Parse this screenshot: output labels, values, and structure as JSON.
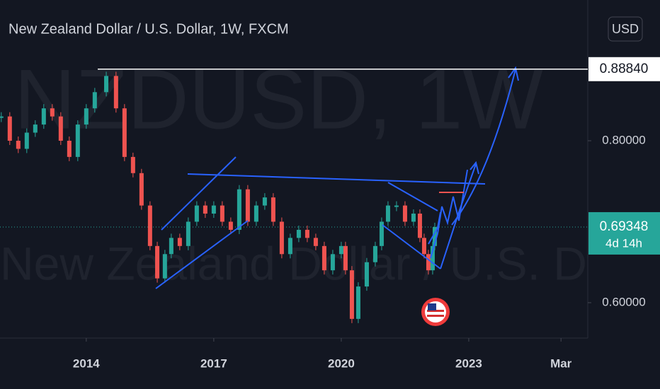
{
  "header": {
    "title": "New Zealand Dollar / U.S. Dollar, 1W, FXCM",
    "currency": "USD",
    "watermark_symbol": "NZDUSD, 1W",
    "watermark_name": "New Zealand Dollar / U.S. Dollar"
  },
  "chart_data": {
    "type": "line",
    "x": [
      2012.0,
      2012.2,
      2012.4,
      2012.6,
      2012.8,
      2013.0,
      2013.2,
      2013.4,
      2013.6,
      2013.8,
      2014.0,
      2014.2,
      2014.47,
      2014.7,
      2014.9,
      2015.1,
      2015.3,
      2015.5,
      2015.67,
      2015.85,
      2016.0,
      2016.2,
      2016.4,
      2016.6,
      2016.8,
      2017.0,
      2017.2,
      2017.4,
      2017.6,
      2017.8,
      2018.0,
      2018.2,
      2018.4,
      2018.6,
      2018.8,
      2019.0,
      2019.2,
      2019.4,
      2019.6,
      2019.8,
      2020.0,
      2020.1,
      2020.25,
      2020.4,
      2020.6,
      2020.8,
      2020.95,
      2021.1,
      2021.3,
      2021.5,
      2021.7,
      2021.85,
      2021.95,
      2022.05,
      2022.15,
      2022.2
    ],
    "values": [
      0.83,
      0.8,
      0.79,
      0.81,
      0.82,
      0.84,
      0.83,
      0.8,
      0.78,
      0.82,
      0.84,
      0.86,
      0.88,
      0.84,
      0.78,
      0.76,
      0.72,
      0.67,
      0.63,
      0.66,
      0.68,
      0.67,
      0.7,
      0.72,
      0.71,
      0.72,
      0.7,
      0.69,
      0.74,
      0.7,
      0.72,
      0.73,
      0.7,
      0.66,
      0.68,
      0.69,
      0.68,
      0.67,
      0.64,
      0.66,
      0.67,
      0.64,
      0.58,
      0.62,
      0.65,
      0.67,
      0.7,
      0.72,
      0.72,
      0.7,
      0.71,
      0.68,
      0.66,
      0.64,
      0.67,
      0.69348
    ],
    "up_color": "#26a69a",
    "down_color": "#ef5350",
    "xlim": [
      2011.97,
      2025.8
    ],
    "ylim": [
      0.5563,
      0.9738
    ],
    "xticks": [
      2014,
      2017,
      2020,
      2023,
      {
        "value": 2025.17,
        "label": "Mar"
      }
    ],
    "yticks": [
      {
        "value": 0.8,
        "label": "0.80000"
      },
      {
        "value": 0.6,
        "label": "0.60000"
      }
    ],
    "level": {
      "value": 0.8884,
      "label": "0.88840"
    },
    "last_price": 0.69348,
    "countdown": "4d 14h"
  }
}
